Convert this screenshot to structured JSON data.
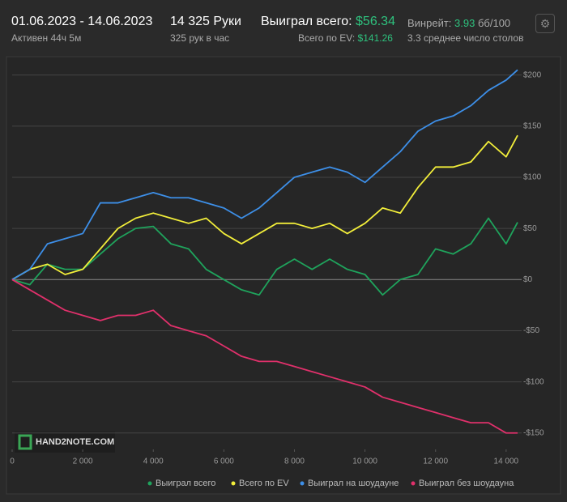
{
  "header": {
    "period": "01.06.2023 - 14.06.2023",
    "active": "Активен 44ч 5м",
    "hands": "14 325 Руки",
    "hands_per_hour": "325 рук в час",
    "won_label": "Выиграл всего:",
    "won_value": "$56.34",
    "ev_label": "Всего по EV:",
    "ev_value": "$141.26",
    "winrate_label": "Винрейт:",
    "winrate_value": "3.93",
    "winrate_unit": "бб/100",
    "tables": "3.3 среднее число столов"
  },
  "logo": "HAND2NOTE.COM",
  "chart_data": {
    "type": "line",
    "x": [
      0,
      500,
      1000,
      1500,
      2000,
      2500,
      3000,
      3500,
      4000,
      4500,
      5000,
      5500,
      6000,
      6500,
      7000,
      7500,
      8000,
      8500,
      9000,
      9500,
      10000,
      10500,
      11000,
      11500,
      12000,
      12500,
      13000,
      13500,
      14000,
      14325
    ],
    "xlim": [
      0,
      14325
    ],
    "xticks": [
      0,
      {
        "value": 2000,
        "label": "2 000"
      },
      {
        "value": 4000,
        "label": "4 000"
      },
      {
        "value": 6000,
        "label": "6 000"
      },
      {
        "value": 8000,
        "label": "8 000"
      },
      {
        "value": 10000,
        "label": "10 000"
      },
      {
        "value": 12000,
        "label": "12 000"
      },
      {
        "value": 14000,
        "label": "14 000"
      }
    ],
    "ylim": [
      -166,
      210
    ],
    "yticks": [
      {
        "value": 200,
        "label": "$200"
      },
      {
        "value": 150,
        "label": "$150"
      },
      {
        "value": 100,
        "label": "$100"
      },
      {
        "value": 50,
        "label": "$50"
      },
      {
        "value": 0,
        "label": "$0"
      },
      {
        "value": -50,
        "label": "-$50"
      },
      {
        "value": -100,
        "label": "-$100"
      },
      {
        "value": -150,
        "label": "-$150"
      }
    ],
    "grid": true,
    "series": [
      {
        "name": "Выиграл всего",
        "color": "#1fa35c",
        "values": [
          0,
          -5,
          15,
          10,
          10,
          25,
          40,
          50,
          52,
          35,
          30,
          10,
          0,
          -10,
          -15,
          10,
          20,
          10,
          20,
          10,
          5,
          -15,
          0,
          5,
          30,
          25,
          35,
          60,
          35,
          56
        ]
      },
      {
        "name": "Всего по EV",
        "color": "#f2ee3a",
        "values": [
          0,
          10,
          15,
          5,
          10,
          30,
          50,
          60,
          65,
          60,
          55,
          60,
          45,
          35,
          45,
          55,
          55,
          50,
          55,
          45,
          55,
          70,
          65,
          90,
          110,
          110,
          115,
          135,
          120,
          141
        ]
      },
      {
        "name": "Выиграл на шоудауне",
        "color": "#3d8fe8",
        "values": [
          0,
          10,
          35,
          40,
          45,
          75,
          75,
          80,
          85,
          80,
          80,
          75,
          70,
          60,
          70,
          85,
          100,
          105,
          110,
          105,
          95,
          110,
          125,
          145,
          155,
          160,
          170,
          185,
          195,
          205
        ]
      },
      {
        "name": "Выиграл без шоудауна",
        "color": "#e0306b",
        "values": [
          0,
          -10,
          -20,
          -30,
          -35,
          -40,
          -35,
          -35,
          -30,
          -45,
          -50,
          -55,
          -65,
          -75,
          -80,
          -80,
          -85,
          -90,
          -95,
          -100,
          -105,
          -115,
          -120,
          -125,
          -130,
          -135,
          -140,
          -140,
          -150,
          -150
        ]
      }
    ]
  }
}
